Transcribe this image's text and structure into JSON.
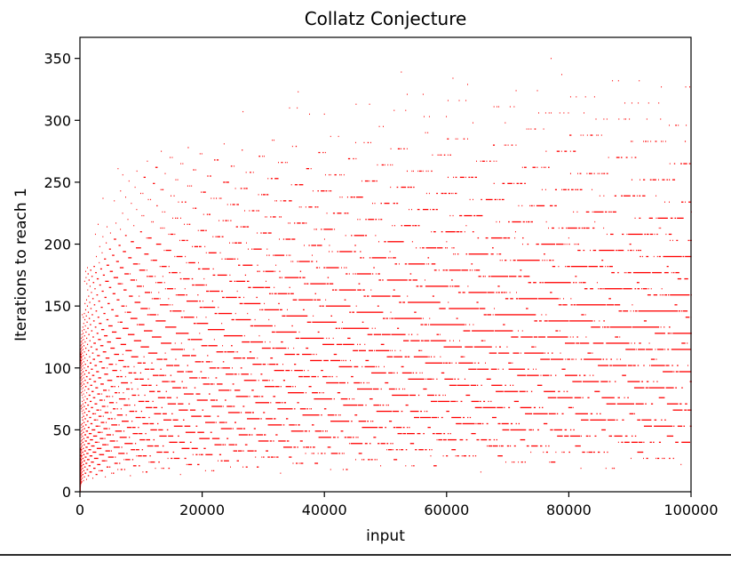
{
  "chart_data": {
    "type": "scatter",
    "title": "Collatz Conjecture",
    "xlabel": "input",
    "ylabel": "Iterations to reach 1",
    "xlim": [
      0,
      100000
    ],
    "ylim": [
      0,
      367
    ],
    "xticks": [
      0,
      20000,
      40000,
      60000,
      80000,
      100000
    ],
    "yticks": [
      0,
      50,
      100,
      150,
      200,
      250,
      300,
      350
    ],
    "x_range": {
      "start": 1,
      "end": 100000
    },
    "y_definition": "number of steps of the Collatz map to reach 1",
    "grid": false,
    "legend": "none",
    "marker_color": "#ff0000"
  }
}
